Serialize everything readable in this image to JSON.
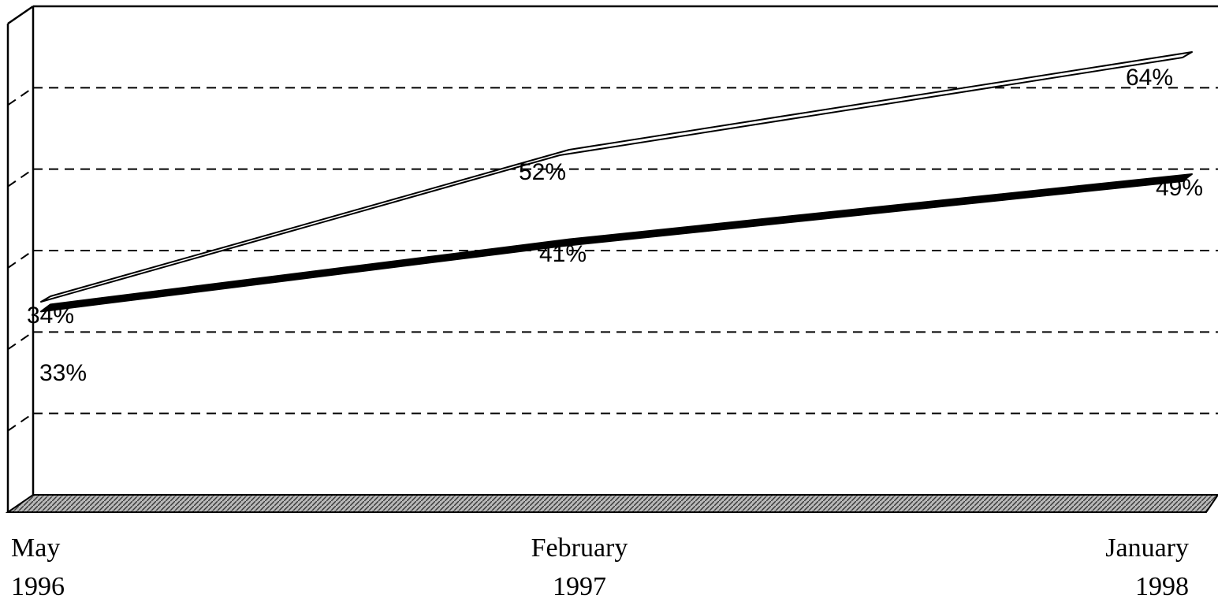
{
  "chart_data": {
    "type": "line",
    "categories": [
      [
        "May",
        "1996"
      ],
      [
        "February",
        "1997"
      ],
      [
        "January",
        "1998"
      ]
    ],
    "series": [
      {
        "values": [
          34,
          52,
          64
        ],
        "style": "white",
        "labels": [
          "34%",
          "52%",
          "64%"
        ]
      },
      {
        "values": [
          33,
          41,
          49
        ],
        "style": "black",
        "labels": [
          "33%",
          "41%",
          "49%"
        ]
      }
    ],
    "ylim": [
      10,
      70
    ],
    "gridlines": [
      20,
      30,
      40,
      50,
      60,
      70
    ],
    "grid": true,
    "legend": "none",
    "colors": {
      "line_white": "#ffffff",
      "line_black": "#000000",
      "floor": "#8c8c8c"
    }
  }
}
